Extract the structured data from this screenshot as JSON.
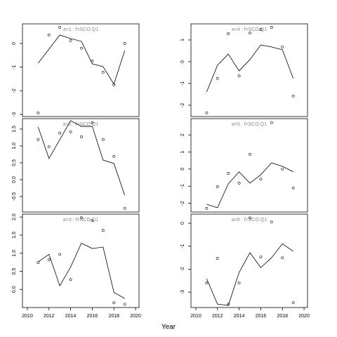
{
  "xlabel": "Year",
  "chart_data": [
    {
      "type": "line",
      "title": "a=1 : f=SCO.Q1",
      "x": [
        2011,
        2012,
        2013,
        2014,
        2015,
        2016,
        2017,
        2018,
        2019
      ],
      "series": [
        {
          "mode": "lines",
          "color": "#000000",
          "values": [
            -0.83,
            -0.24,
            0.36,
            0.21,
            0.09,
            -0.86,
            -0.98,
            -1.72,
            -0.3
          ]
        },
        {
          "mode": "markers",
          "color": "#000000",
          "values": [
            -2.94,
            0.36,
            0.68,
            0.12,
            -0.2,
            -0.74,
            -1.22,
            -1.75,
            0
          ]
        }
      ],
      "xlim": [
        2009.55,
        2020.32
      ],
      "ylim": [
        -3.09,
        0.83
      ],
      "yticks": [
        -3,
        -2,
        -1,
        0
      ]
    },
    {
      "type": "line",
      "title": "a=2 : f=SCO.Q1",
      "x": [
        2011,
        2012,
        2013,
        2014,
        2015,
        2016,
        2017,
        2018,
        2019
      ],
      "series": [
        {
          "mode": "lines",
          "color": "#000000",
          "values": [
            1.56,
            0.63,
            1.19,
            1.75,
            1.58,
            1.58,
            0.58,
            0.48,
            -0.46
          ]
        },
        {
          "mode": "markers",
          "color": "#000000",
          "values": [
            1.19,
            0.98,
            1.38,
            1.42,
            1.27,
            1.69,
            1.19,
            0.69,
            -0.85
          ]
        }
      ],
      "xlim": [
        2009.55,
        2020.32
      ],
      "ylim": [
        -0.96,
        1.81
      ],
      "yticks": [
        -0.5,
        {
          "value": 0,
          "label": "0.0"
        },
        0.5,
        {
          "value": 1,
          "label": "1.0"
        },
        1.5
      ]
    },
    {
      "type": "line",
      "title": "a=3 : f=SCO.Q1",
      "x": [
        2011,
        2012,
        2013,
        2014,
        2015,
        2016,
        2017,
        2018,
        2019
      ],
      "series": [
        {
          "mode": "lines",
          "color": "#000000",
          "values": [
            0.76,
            0.97,
            0.1,
            0.62,
            1.28,
            1.13,
            1.17,
            -0.08,
            -0.25
          ]
        },
        {
          "mode": "markers",
          "color": "#000000",
          "values": [
            0.74,
            0.82,
            0.97,
            0.27,
            1.98,
            1.9,
            1.63,
            -0.37,
            -0.41
          ]
        }
      ],
      "xlim": [
        2009.55,
        2020.32
      ],
      "ylim": [
        -0.5,
        2.08
      ],
      "yticks": [
        {
          "value": 0,
          "label": "0.0"
        },
        0.5,
        {
          "value": 1,
          "label": "1.0"
        },
        1.5,
        {
          "value": 2,
          "label": "2.0"
        }
      ],
      "xticks": [
        2010,
        2012,
        2014,
        2016,
        2018,
        2020
      ]
    },
    {
      "type": "line",
      "title": "a=4 : f=SCO.Q1",
      "x": [
        2011,
        2012,
        2013,
        2014,
        2015,
        2016,
        2017,
        2018,
        2019
      ],
      "series": [
        {
          "mode": "lines",
          "color": "#000000",
          "values": [
            -1.39,
            -0.16,
            0.35,
            -0.42,
            0.1,
            0.77,
            0.68,
            0.55,
            -0.77
          ]
        },
        {
          "mode": "markers",
          "color": "#000000",
          "values": [
            -2.35,
            -0.77,
            1.29,
            -0.65,
            1.32,
            1.48,
            1.58,
            0.68,
            -1.58
          ]
        }
      ],
      "xlim": [
        2009.55,
        2020.32
      ],
      "ylim": [
        -2.52,
        1.74
      ],
      "yticks": [
        -2,
        -1,
        0,
        1
      ]
    },
    {
      "type": "line",
      "title": "a=5 : f=SCO.Q1",
      "x": [
        2011,
        2012,
        2013,
        2014,
        2015,
        2016,
        2017,
        2018,
        2019
      ],
      "series": [
        {
          "mode": "lines",
          "color": "#000000",
          "values": [
            -2.06,
            -2.26,
            -0.86,
            -0.16,
            -0.82,
            -0.33,
            0.37,
            0.16,
            -0.16
          ]
        },
        {
          "mode": "markers",
          "color": "#000000",
          "values": [
            -2.3,
            -1.03,
            -0.25,
            -0.82,
            0.86,
            -0.58,
            2.72,
            0,
            -1.11
          ]
        }
      ],
      "xlim": [
        2009.55,
        2020.32
      ],
      "ylim": [
        -2.51,
        2.95
      ],
      "yticks": [
        -2,
        -1,
        0,
        1,
        2
      ]
    },
    {
      "type": "line",
      "title": "a=6 : f=SCO.Q1",
      "x": [
        2011,
        2012,
        2013,
        2014,
        2015,
        2016,
        2017,
        2018,
        2019
      ],
      "series": [
        {
          "mode": "lines",
          "color": "#000000",
          "values": [
            -2.42,
            -3.52,
            -3.58,
            -2.14,
            -1.28,
            -1.93,
            -1.5,
            -0.89,
            -1.22
          ]
        },
        {
          "mode": "markers",
          "color": "#000000",
          "values": [
            -2.6,
            -1.53,
            -3.52,
            -2.6,
            0.24,
            -1.47,
            0.06,
            -1.5,
            -3.46
          ]
        }
      ],
      "xlim": [
        2009.55,
        2020.32
      ],
      "ylim": [
        -3.67,
        0.4
      ],
      "yticks": [
        -3,
        -2,
        -1,
        0
      ],
      "xticks": [
        2010,
        2012,
        2014,
        2016,
        2018,
        2020
      ]
    }
  ]
}
